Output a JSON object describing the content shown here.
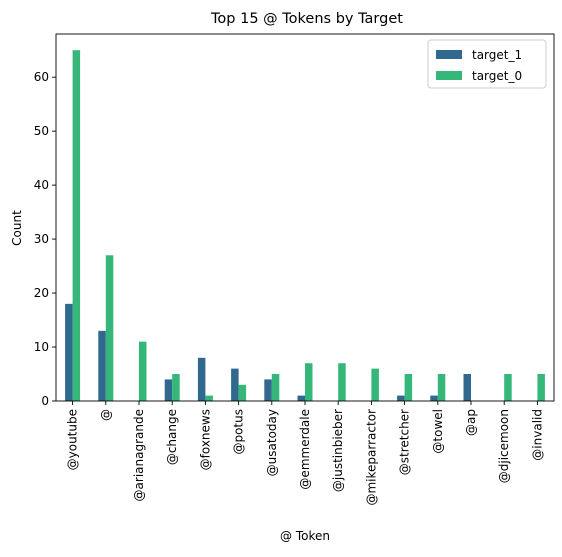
{
  "chart_data": {
    "type": "bar",
    "title": "Top 15 @ Tokens by Target",
    "xlabel": "@ Token",
    "ylabel": "Count",
    "ylim": [
      0,
      68
    ],
    "yticks": [
      0,
      10,
      20,
      30,
      40,
      50,
      60
    ],
    "grid": false,
    "legend_position": "top-right",
    "categories": [
      "@youtube",
      "@",
      "@arianagrande",
      "@change",
      "@foxnews",
      "@potus",
      "@usatoday",
      "@emmerdale",
      "@justinbieber",
      "@mikeparractor",
      "@stretcher",
      "@towel",
      "@ap",
      "@djicemoon",
      "@invalid"
    ],
    "series": [
      {
        "name": "target_1",
        "color": "#31688e",
        "values": [
          18,
          13,
          0,
          4,
          8,
          6,
          4,
          1,
          0,
          0,
          1,
          1,
          5,
          0,
          0
        ]
      },
      {
        "name": "target_0",
        "color": "#35b779",
        "values": [
          65,
          27,
          11,
          5,
          1,
          3,
          5,
          7,
          7,
          6,
          5,
          5,
          0,
          5,
          5
        ]
      }
    ]
  }
}
